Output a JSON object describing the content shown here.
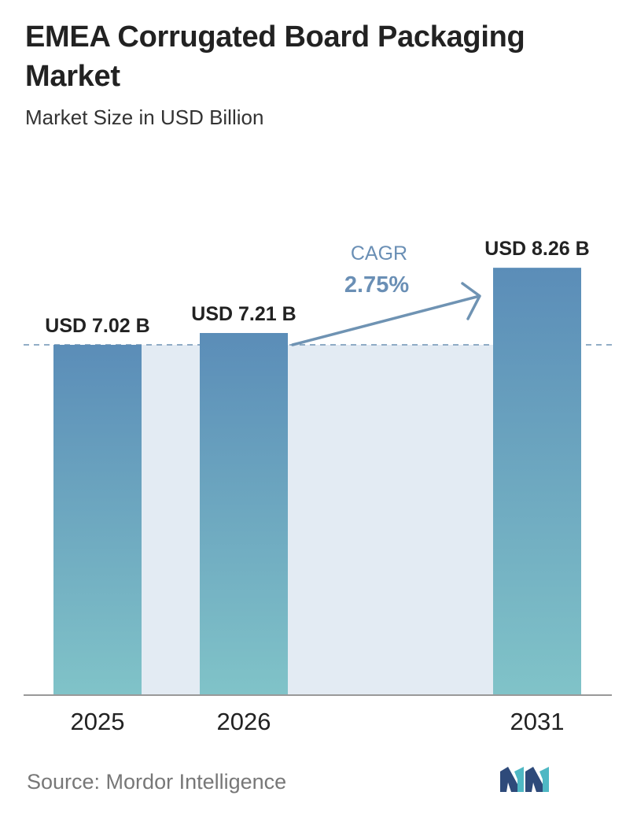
{
  "title": "EMEA Corrugated Board Packaging Market",
  "subtitle": "Market Size in USD Billion",
  "source": "Source:  Mordor Intelligence",
  "colors": {
    "bar_top": "#5b8db8",
    "bar_bottom": "#80c3c8",
    "band": "#e3ebf3",
    "dashed_line": "#6f93b3",
    "cagr_text": "#6a8fb5",
    "axis": "#999999"
  },
  "icons": {
    "logo": "mordor-intelligence-logo"
  },
  "chart_data": {
    "type": "bar",
    "categories": [
      "2025",
      "2026",
      "2031"
    ],
    "values": [
      7.02,
      7.21,
      8.26
    ],
    "value_labels": [
      "USD 7.02 B",
      "USD 7.21 B",
      "USD 8.26 B"
    ],
    "unit": "USD Billion",
    "annotation": {
      "label": "CAGR",
      "value": "2.75%",
      "from": "2026",
      "to": "2031"
    },
    "reference_line": {
      "value": 7.02,
      "style": "dashed"
    },
    "grid": false,
    "legend": "none"
  }
}
